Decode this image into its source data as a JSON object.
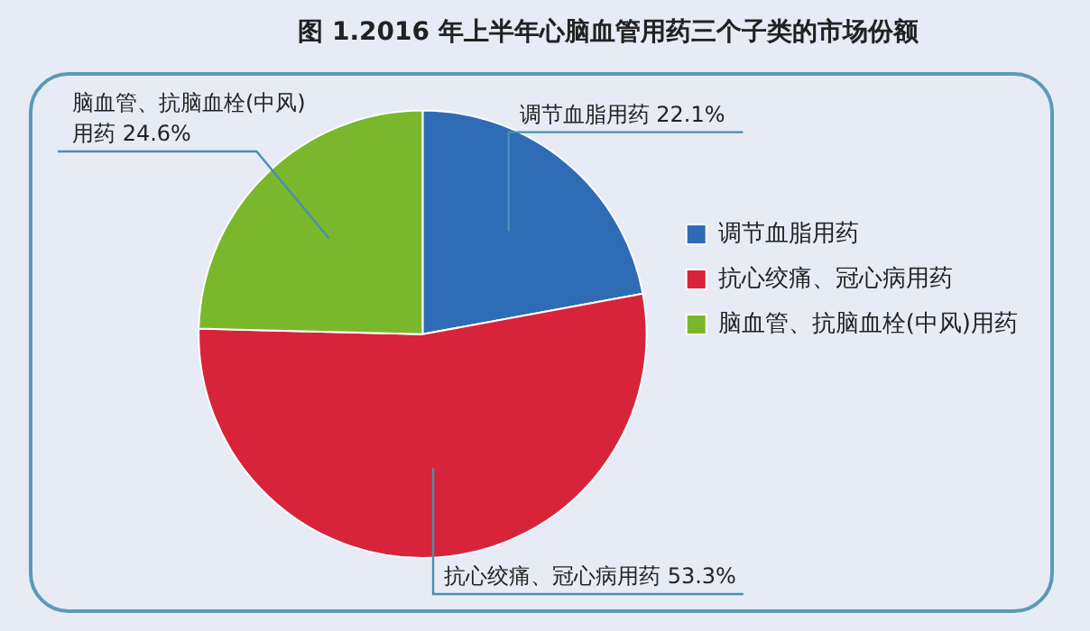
{
  "chart_data": {
    "type": "pie",
    "title": "图 1.2016 年上半年心脑血管用药三个子类的市场份额",
    "categories": [
      "调节血脂用药",
      "抗心绞痛、冠心病用药",
      "脑血管、抗脑血栓(中风)用药"
    ],
    "values": [
      22.1,
      53.3,
      24.6
    ],
    "value_labels": [
      "22.1%",
      "53.3%",
      "24.6%"
    ],
    "colors": [
      "#2f6cb6",
      "#d8243a",
      "#79b82c"
    ],
    "legend": "right"
  }
}
